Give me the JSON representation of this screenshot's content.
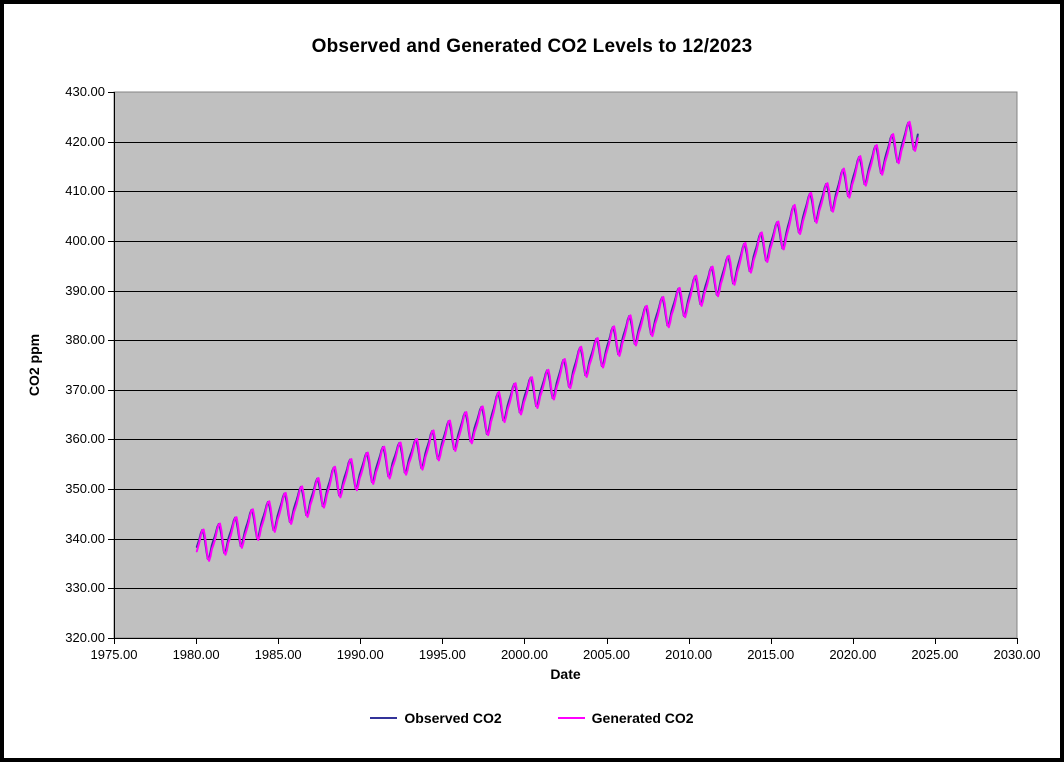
{
  "chart_data": {
    "type": "line",
    "title": "Observed and Generated CO2 Levels to 12/2023",
    "xlabel": "Date",
    "ylabel": "CO2 ppm",
    "xlim": [
      1975,
      2030
    ],
    "ylim": [
      320,
      430
    ],
    "x_tick_labels": [
      "1975.00",
      "1980.00",
      "1985.00",
      "1990.00",
      "1995.00",
      "2000.00",
      "2005.00",
      "2010.00",
      "2015.00",
      "2020.00",
      "2025.00",
      "2030.00"
    ],
    "y_tick_labels": [
      "320.00",
      "330.00",
      "340.00",
      "350.00",
      "360.00",
      "370.00",
      "380.00",
      "390.00",
      "400.00",
      "410.00",
      "420.00",
      "430.00"
    ],
    "grid": "horizontal-only",
    "plot_bg_color": "#c0c0c0",
    "plot_border_color": "#848484",
    "gridline_color": "#000000",
    "axis_color": "#000000",
    "legend_position": "bottom-center",
    "sampling": "monthly",
    "x_start": 1980.042,
    "x_end": 2023.958,
    "annual_means_start_year": 1980,
    "annual_means": [
      338.9,
      340.1,
      341.4,
      343.0,
      344.6,
      346.3,
      347.6,
      349.3,
      351.6,
      353.1,
      354.4,
      355.6,
      356.4,
      357.1,
      358.9,
      360.9,
      362.6,
      363.7,
      366.7,
      368.4,
      369.6,
      371.1,
      373.3,
      375.8,
      377.5,
      379.9,
      382.1,
      384.0,
      385.8,
      387.6,
      390.1,
      391.9,
      394.1,
      396.7,
      398.8,
      401.0,
      404.4,
      406.8,
      408.7,
      411.7,
      414.2,
      416.4,
      418.6,
      421.1
    ],
    "series": [
      {
        "name": "Observed CO2",
        "color": "#333399",
        "seasonal_by_month": [
          0.0,
          0.7,
          1.5,
          2.5,
          3.0,
          2.2,
          0.6,
          -1.5,
          -3.2,
          -3.3,
          -2.0,
          -0.8
        ]
      },
      {
        "name": "Generated CO2",
        "color": "#ff00ff",
        "seasonal_by_month": [
          -0.9,
          -0.1,
          0.9,
          2.1,
          2.9,
          3.0,
          1.5,
          -0.9,
          -3.0,
          -3.7,
          -2.9,
          -1.6
        ]
      }
    ]
  }
}
